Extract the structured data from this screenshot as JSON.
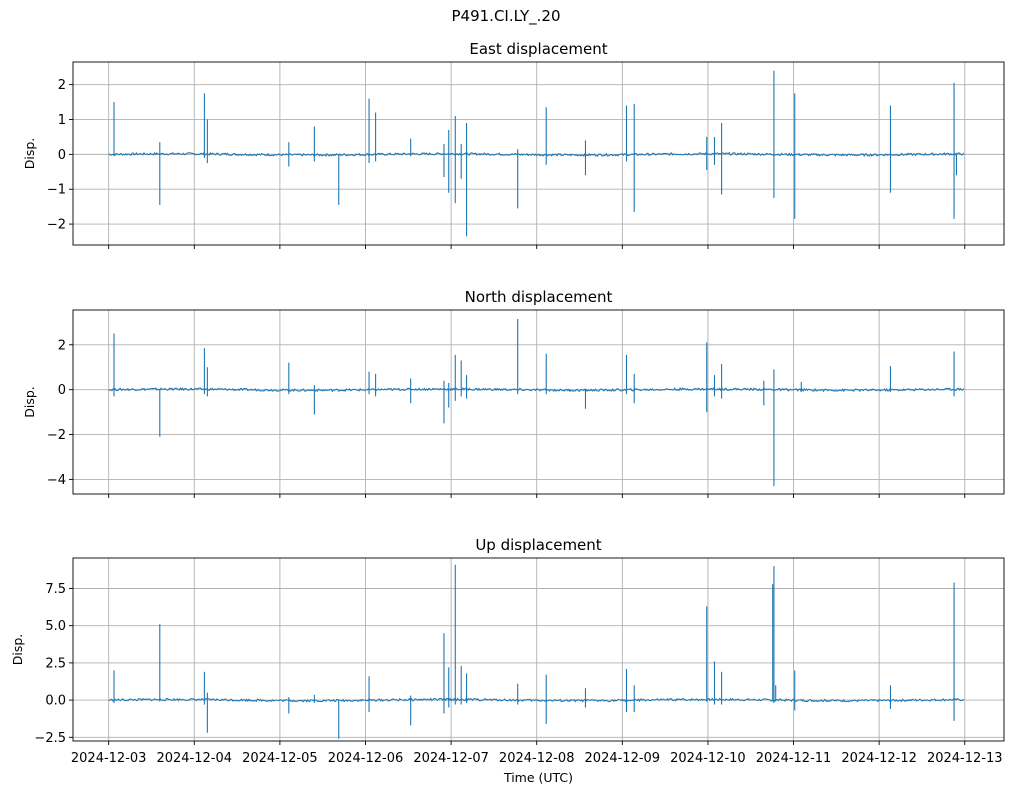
{
  "figure": {
    "suptitle": "P491.CI.LY_.20",
    "xlabel": "Time (UTC)"
  },
  "chart_data": [
    {
      "type": "line",
      "title": "East displacement",
      "ylabel": "Disp.",
      "xlabel": "",
      "xlim": [
        "2024-12-02T14:00",
        "2024-12-13T11:00"
      ],
      "ylim": [
        -2.6,
        2.65
      ],
      "yticks": [
        2,
        1,
        0,
        -1,
        -2
      ],
      "ytick_labels": [
        "2",
        "1",
        "0",
        "−1",
        "−2"
      ],
      "grid": true,
      "color": "#1f77b4",
      "spikes": [
        {
          "t": "2024-12-03T01:30",
          "min": -0.05,
          "max": 1.5
        },
        {
          "t": "2024-12-03T14:20",
          "min": -1.45,
          "max": 0.35
        },
        {
          "t": "2024-12-04T02:50",
          "min": -0.1,
          "max": 1.75
        },
        {
          "t": "2024-12-04T03:40",
          "min": -0.25,
          "max": 1.0
        },
        {
          "t": "2024-12-05T02:30",
          "min": -0.35,
          "max": 0.35
        },
        {
          "t": "2024-12-05T09:40",
          "min": -0.2,
          "max": 0.8
        },
        {
          "t": "2024-12-05T16:30",
          "min": -1.45,
          "max": 0.0
        },
        {
          "t": "2024-12-06T01:00",
          "min": -0.25,
          "max": 1.6
        },
        {
          "t": "2024-12-06T02:50",
          "min": -0.2,
          "max": 1.2
        },
        {
          "t": "2024-12-06T12:40",
          "min": -0.05,
          "max": 0.45
        },
        {
          "t": "2024-12-06T22:00",
          "min": -0.65,
          "max": 0.3
        },
        {
          "t": "2024-12-06T23:20",
          "min": -1.1,
          "max": 0.7
        },
        {
          "t": "2024-12-07T01:10",
          "min": -1.4,
          "max": 1.1
        },
        {
          "t": "2024-12-07T02:50",
          "min": -0.7,
          "max": 0.3
        },
        {
          "t": "2024-12-07T04:20",
          "min": -2.35,
          "max": 0.9
        },
        {
          "t": "2024-12-07T18:40",
          "min": -1.55,
          "max": 0.15
        },
        {
          "t": "2024-12-08T02:40",
          "min": -0.3,
          "max": 1.35
        },
        {
          "t": "2024-12-08T13:40",
          "min": -0.6,
          "max": 0.4
        },
        {
          "t": "2024-12-09T01:10",
          "min": -0.2,
          "max": 1.4
        },
        {
          "t": "2024-12-09T03:20",
          "min": -1.65,
          "max": 1.45
        },
        {
          "t": "2024-12-09T23:40",
          "min": -0.45,
          "max": 0.5
        },
        {
          "t": "2024-12-10T01:50",
          "min": -0.3,
          "max": 0.5
        },
        {
          "t": "2024-12-10T03:50",
          "min": -1.15,
          "max": 0.9
        },
        {
          "t": "2024-12-10T18:30",
          "min": -1.25,
          "max": 2.4
        },
        {
          "t": "2024-12-11T00:20",
          "min": -1.85,
          "max": 1.75
        },
        {
          "t": "2024-12-12T03:10",
          "min": -1.1,
          "max": 1.4
        },
        {
          "t": "2024-12-12T21:00",
          "min": -1.85,
          "max": 2.05
        },
        {
          "t": "2024-12-12T21:40",
          "min": -0.6,
          "max": 0.0
        }
      ]
    },
    {
      "type": "line",
      "title": "North displacement",
      "ylabel": "Disp.",
      "xlabel": "",
      "xlim": [
        "2024-12-02T14:00",
        "2024-12-13T11:00"
      ],
      "ylim": [
        -4.65,
        3.55
      ],
      "yticks": [
        2,
        0,
        -2,
        -4
      ],
      "ytick_labels": [
        "2",
        "0",
        "−2",
        "−4"
      ],
      "grid": true,
      "color": "#1f77b4",
      "spikes": [
        {
          "t": "2024-12-03T01:30",
          "min": -0.3,
          "max": 2.5
        },
        {
          "t": "2024-12-03T14:20",
          "min": -2.1,
          "max": 0.0
        },
        {
          "t": "2024-12-04T02:50",
          "min": -0.2,
          "max": 1.85
        },
        {
          "t": "2024-12-04T03:40",
          "min": -0.3,
          "max": 1.0
        },
        {
          "t": "2024-12-05T02:30",
          "min": -0.2,
          "max": 1.2
        },
        {
          "t": "2024-12-05T09:40",
          "min": -1.1,
          "max": 0.2
        },
        {
          "t": "2024-12-06T01:00",
          "min": -0.2,
          "max": 0.8
        },
        {
          "t": "2024-12-06T02:50",
          "min": -0.3,
          "max": 0.7
        },
        {
          "t": "2024-12-06T12:40",
          "min": -0.6,
          "max": 0.5
        },
        {
          "t": "2024-12-06T22:00",
          "min": -1.5,
          "max": 0.4
        },
        {
          "t": "2024-12-06T23:20",
          "min": -0.8,
          "max": 0.3
        },
        {
          "t": "2024-12-07T01:10",
          "min": -0.5,
          "max": 1.55
        },
        {
          "t": "2024-12-07T02:50",
          "min": -0.3,
          "max": 1.3
        },
        {
          "t": "2024-12-07T04:20",
          "min": -0.4,
          "max": 0.65
        },
        {
          "t": "2024-12-07T18:40",
          "min": -0.2,
          "max": 3.15
        },
        {
          "t": "2024-12-08T02:40",
          "min": -0.2,
          "max": 1.6
        },
        {
          "t": "2024-12-08T13:40",
          "min": -0.85,
          "max": 0.0
        },
        {
          "t": "2024-12-09T01:10",
          "min": -0.2,
          "max": 1.55
        },
        {
          "t": "2024-12-09T03:20",
          "min": -0.6,
          "max": 0.7
        },
        {
          "t": "2024-12-09T23:40",
          "min": -1.0,
          "max": 2.1
        },
        {
          "t": "2024-12-10T01:50",
          "min": -0.3,
          "max": 0.65
        },
        {
          "t": "2024-12-10T03:50",
          "min": -0.4,
          "max": 1.15
        },
        {
          "t": "2024-12-10T15:40",
          "min": -0.7,
          "max": 0.4
        },
        {
          "t": "2024-12-10T18:30",
          "min": -4.3,
          "max": 0.9
        },
        {
          "t": "2024-12-11T02:10",
          "min": -0.1,
          "max": 0.35
        },
        {
          "t": "2024-12-12T03:10",
          "min": -0.1,
          "max": 1.05
        },
        {
          "t": "2024-12-12T21:00",
          "min": -0.3,
          "max": 1.7
        }
      ]
    },
    {
      "type": "line",
      "title": "Up displacement",
      "ylabel": "Disp.",
      "xlabel": "Time (UTC)",
      "xlim": [
        "2024-12-02T14:00",
        "2024-12-13T11:00"
      ],
      "ylim": [
        -2.75,
        9.55
      ],
      "yticks": [
        7.5,
        5.0,
        2.5,
        0.0,
        -2.5
      ],
      "ytick_labels": [
        "7.5",
        "5.0",
        "2.5",
        "0.0",
        "−2.5"
      ],
      "grid": true,
      "color": "#1f77b4",
      "spikes": [
        {
          "t": "2024-12-03T01:30",
          "min": -0.2,
          "max": 2.0
        },
        {
          "t": "2024-12-03T14:20",
          "min": -0.1,
          "max": 5.1
        },
        {
          "t": "2024-12-04T02:50",
          "min": -0.3,
          "max": 1.9
        },
        {
          "t": "2024-12-04T03:40",
          "min": -2.2,
          "max": 0.5
        },
        {
          "t": "2024-12-05T02:30",
          "min": -0.9,
          "max": 0.2
        },
        {
          "t": "2024-12-05T09:40",
          "min": -0.2,
          "max": 0.35
        },
        {
          "t": "2024-12-05T16:30",
          "min": -2.6,
          "max": 0.0
        },
        {
          "t": "2024-12-06T01:00",
          "min": -0.8,
          "max": 1.6
        },
        {
          "t": "2024-12-06T12:40",
          "min": -1.7,
          "max": 0.3
        },
        {
          "t": "2024-12-06T22:00",
          "min": -0.9,
          "max": 4.5
        },
        {
          "t": "2024-12-06T23:20",
          "min": -0.5,
          "max": 2.2
        },
        {
          "t": "2024-12-07T01:10",
          "min": -0.3,
          "max": 9.1
        },
        {
          "t": "2024-12-07T02:50",
          "min": -0.3,
          "max": 2.3
        },
        {
          "t": "2024-12-07T04:20",
          "min": -0.2,
          "max": 1.8
        },
        {
          "t": "2024-12-07T18:40",
          "min": -0.3,
          "max": 1.1
        },
        {
          "t": "2024-12-08T02:40",
          "min": -1.6,
          "max": 1.7
        },
        {
          "t": "2024-12-08T13:40",
          "min": -0.5,
          "max": 0.8
        },
        {
          "t": "2024-12-09T01:10",
          "min": -0.8,
          "max": 2.1
        },
        {
          "t": "2024-12-09T03:20",
          "min": -0.8,
          "max": 1.0
        },
        {
          "t": "2024-12-09T23:40",
          "min": -0.1,
          "max": 6.3
        },
        {
          "t": "2024-12-10T01:50",
          "min": -0.3,
          "max": 2.6
        },
        {
          "t": "2024-12-10T03:50",
          "min": -0.3,
          "max": 1.9
        },
        {
          "t": "2024-12-10T18:10",
          "min": -0.1,
          "max": 7.8
        },
        {
          "t": "2024-12-10T18:30",
          "min": -0.2,
          "max": 9.0
        },
        {
          "t": "2024-12-10T19:00",
          "min": -0.1,
          "max": 1.0
        },
        {
          "t": "2024-12-11T00:20",
          "min": -0.7,
          "max": 2.0
        },
        {
          "t": "2024-12-12T03:10",
          "min": -0.6,
          "max": 1.0
        },
        {
          "t": "2024-12-12T21:00",
          "min": -1.4,
          "max": 7.9
        }
      ]
    }
  ],
  "xaxis": {
    "ticks": [
      "2024-12-03",
      "2024-12-04",
      "2024-12-05",
      "2024-12-06",
      "2024-12-07",
      "2024-12-08",
      "2024-12-09",
      "2024-12-10",
      "2024-12-11",
      "2024-12-12",
      "2024-12-13"
    ],
    "data_start": "2024-12-03T00:00",
    "data_end": "2024-12-12T23:59"
  }
}
